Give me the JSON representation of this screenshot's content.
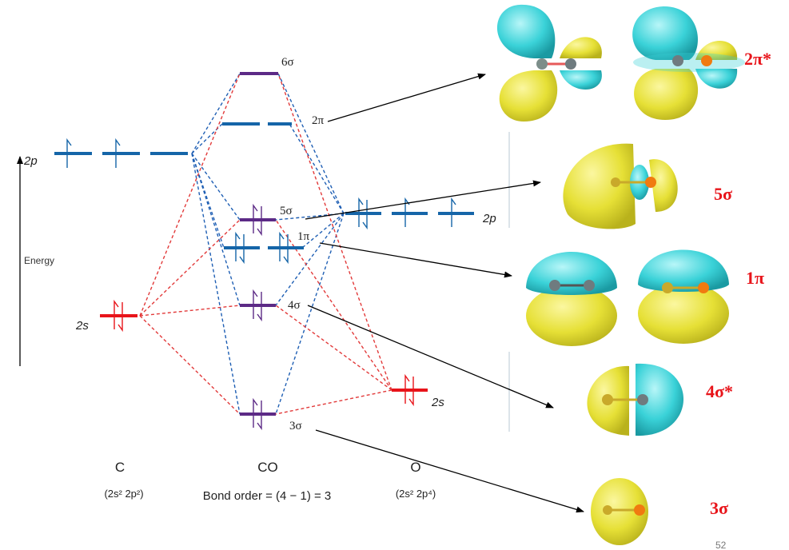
{
  "axis": {
    "label": "Energy"
  },
  "carbon": {
    "atom": "C",
    "config": "(2s² 2p²)",
    "level_2p": "2p",
    "level_2s": "2s"
  },
  "oxygen": {
    "atom": "O",
    "config": "(2s² 2p⁴)",
    "level_2p": "2p",
    "level_2s": "2s"
  },
  "molecule": {
    "name": "CO",
    "bond_order": "Bond order = (4 − 1) = 3",
    "levels": {
      "sigma6": "6σ",
      "pi2": "2π",
      "sigma5": "5σ",
      "pi1": "1π",
      "sigma4": "4σ",
      "sigma3": "3σ"
    }
  },
  "orbital_labels": {
    "pi2_star": "2π*",
    "sigma5": "5σ",
    "pi1": "1π",
    "sigma4_star": "4σ*",
    "sigma3": "3σ"
  },
  "page_number": "52",
  "colors": {
    "carbon_2p": "#1565a8",
    "carbon_2s": "#e8141a",
    "mo_level": "#5c2a86",
    "oxygen_level": "#1565a8",
    "dash_blue": "#1f5fb4",
    "dash_red": "#e23a3a",
    "lobe_yellow": "#e8e43a",
    "lobe_cyan": "#3ad6dc",
    "atom_grey": "#6f7b7f",
    "atom_orange": "#f07a10",
    "label_red": "#e8141a"
  }
}
